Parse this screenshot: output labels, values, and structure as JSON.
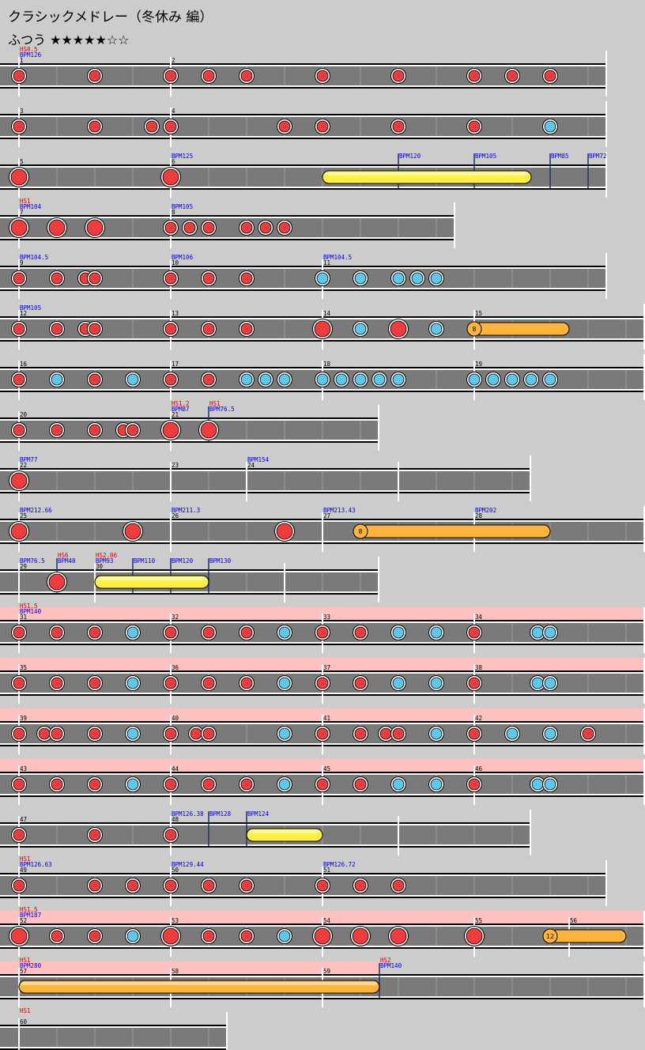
{
  "song": {
    "title": "クラシックメドレー（冬休み 編）",
    "difficulty": "ふつう",
    "stars": "★★★★★☆☆"
  },
  "colors": {
    "don": "#f03c3c",
    "ka": "#5ac8f0",
    "drumroll": "#fff044",
    "drumroll_big": "#ffb43c",
    "gogo": "#ffc0c0",
    "lane": "#7a7a7a",
    "bpm_text": "#0000c0",
    "hs_text": "#d00000"
  },
  "rows": [
    {
      "measures": [
        {
          "num": "1",
          "bpm": "BPM126",
          "hs": "HS0.5"
        },
        {
          "num": "2"
        }
      ],
      "width": 4,
      "notes": [
        {
          "t": "d",
          "x": 0
        },
        {
          "t": "d",
          "x": 2
        },
        {
          "t": "d",
          "x": 4
        },
        {
          "t": "d",
          "x": 5
        },
        {
          "t": "d",
          "x": 6
        },
        {
          "t": "d",
          "x": 8
        },
        {
          "t": "d",
          "x": 10
        },
        {
          "t": "d",
          "x": 12
        },
        {
          "t": "d",
          "x": 13
        },
        {
          "t": "d",
          "x": 14
        }
      ]
    },
    {
      "measures": [
        {
          "num": "3"
        },
        {
          "num": "4"
        }
      ],
      "width": 4,
      "notes": [
        {
          "t": "d",
          "x": 0
        },
        {
          "t": "d",
          "x": 2
        },
        {
          "t": "d",
          "x": 3.5
        },
        {
          "t": "d",
          "x": 4
        },
        {
          "t": "d",
          "x": 7
        },
        {
          "t": "d",
          "x": 8
        },
        {
          "t": "d",
          "x": 10
        },
        {
          "t": "d",
          "x": 12
        },
        {
          "t": "k",
          "x": 14
        }
      ]
    },
    {
      "measures": [
        {
          "num": "5"
        },
        {
          "num": "6",
          "bpm": "BPM125"
        }
      ],
      "width": 4,
      "bpms": [
        {
          "x": 10,
          "label": "BPM120"
        },
        {
          "x": 12,
          "label": "BPM105"
        },
        {
          "x": 14,
          "label": "BPM85"
        },
        {
          "x": 15,
          "label": "BPM72"
        }
      ],
      "notes": [
        {
          "t": "D",
          "x": 0
        },
        {
          "t": "D",
          "x": 4
        },
        {
          "t": "roll",
          "x": 8,
          "end": 13.5
        }
      ]
    },
    {
      "measures": [
        {
          "num": "7",
          "bpm": "BPM104",
          "hs": "HS1"
        },
        {
          "num": "8",
          "bpm": "BPM105"
        }
      ],
      "width": 3,
      "notes": [
        {
          "t": "D",
          "x": 0
        },
        {
          "t": "D",
          "x": 1
        },
        {
          "t": "D",
          "x": 2
        },
        {
          "t": "d",
          "x": 4
        },
        {
          "t": "d",
          "x": 4.5
        },
        {
          "t": "d",
          "x": 5
        },
        {
          "t": "d",
          "x": 6
        },
        {
          "t": "d",
          "x": 6.5
        },
        {
          "t": "d",
          "x": 7
        }
      ]
    },
    {
      "measures": [
        {
          "num": "9",
          "bpm": "BPM104.5"
        },
        {
          "num": "10",
          "bpm": "BPM106"
        },
        {
          "num": "11",
          "bpm": "BPM104.5"
        }
      ],
      "width": 4,
      "notes": [
        {
          "t": "d",
          "x": 0
        },
        {
          "t": "d",
          "x": 1
        },
        {
          "t": "d",
          "x": 1.75
        },
        {
          "t": "d",
          "x": 2
        },
        {
          "t": "d",
          "x": 4
        },
        {
          "t": "d",
          "x": 5
        },
        {
          "t": "d",
          "x": 6
        },
        {
          "t": "k",
          "x": 8
        },
        {
          "t": "k",
          "x": 9
        },
        {
          "t": "k",
          "x": 10
        },
        {
          "t": "k",
          "x": 10.5
        },
        {
          "t": "k",
          "x": 11
        }
      ]
    },
    {
      "measures": [
        {
          "num": "12",
          "bpm": "BPM105"
        },
        {
          "num": "13"
        },
        {
          "num": "14"
        },
        {
          "num": "15"
        }
      ],
      "width": 5,
      "notes": [
        {
          "t": "d",
          "x": 0
        },
        {
          "t": "d",
          "x": 1
        },
        {
          "t": "d",
          "x": 1.75
        },
        {
          "t": "d",
          "x": 2
        },
        {
          "t": "d",
          "x": 4
        },
        {
          "t": "d",
          "x": 5
        },
        {
          "t": "d",
          "x": 6
        },
        {
          "t": "D",
          "x": 8
        },
        {
          "t": "k",
          "x": 9
        },
        {
          "t": "D",
          "x": 10
        },
        {
          "t": "k",
          "x": 11
        },
        {
          "t": "balloon",
          "x": 12,
          "end": 14.5,
          "count": "8"
        }
      ]
    },
    {
      "measures": [
        {
          "num": "16"
        },
        {
          "num": "17"
        },
        {
          "num": "18"
        },
        {
          "num": "19"
        }
      ],
      "width": 5,
      "notes": [
        {
          "t": "d",
          "x": 0
        },
        {
          "t": "k",
          "x": 1
        },
        {
          "t": "d",
          "x": 2
        },
        {
          "t": "k",
          "x": 3
        },
        {
          "t": "d",
          "x": 4
        },
        {
          "t": "d",
          "x": 5
        },
        {
          "t": "k",
          "x": 6
        },
        {
          "t": "k",
          "x": 6.5
        },
        {
          "t": "k",
          "x": 7
        },
        {
          "t": "k",
          "x": 8
        },
        {
          "t": "k",
          "x": 8.5
        },
        {
          "t": "k",
          "x": 9
        },
        {
          "t": "k",
          "x": 9.5
        },
        {
          "t": "k",
          "x": 10
        },
        {
          "t": "k",
          "x": 12
        },
        {
          "t": "k",
          "x": 12.5
        },
        {
          "t": "k",
          "x": 13
        },
        {
          "t": "k",
          "x": 13.5
        },
        {
          "t": "k",
          "x": 14
        }
      ]
    },
    {
      "measures": [
        {
          "num": "20"
        },
        {
          "num": "21",
          "bpm": "BPM87",
          "hs": "HS1.2"
        }
      ],
      "width": 2.5,
      "bpms": [
        {
          "x": 5,
          "label": "BPM76.5",
          "hs": "HS1"
        }
      ],
      "notes": [
        {
          "t": "d",
          "x": 0
        },
        {
          "t": "d",
          "x": 1
        },
        {
          "t": "d",
          "x": 2
        },
        {
          "t": "d",
          "x": 2.75
        },
        {
          "t": "d",
          "x": 3
        },
        {
          "t": "D",
          "x": 4
        },
        {
          "t": "D",
          "x": 5
        }
      ]
    },
    {
      "measures": [
        {
          "num": "22",
          "bpm": "BPM77"
        },
        {
          "num": "23"
        },
        {
          "num": "24",
          "bpm": "BPM154",
          "at": 6
        }
      ],
      "width": 3.5,
      "barlines": [
        0,
        4,
        6,
        10
      ],
      "notes": [
        {
          "t": "D",
          "x": 0
        }
      ]
    },
    {
      "measures": [
        {
          "num": "25",
          "bpm": "BPM212.66"
        },
        {
          "num": "26",
          "bpm": "BPM211.3"
        },
        {
          "num": "27",
          "bpm": "BPM213.43"
        },
        {
          "num": "28",
          "bpm": "BPM202"
        }
      ],
      "width": 5,
      "notes": [
        {
          "t": "D",
          "x": 0
        },
        {
          "t": "D",
          "x": 3
        },
        {
          "t": "D",
          "x": 7
        },
        {
          "t": "balloon",
          "x": 9,
          "end": 14,
          "count": "8"
        }
      ]
    },
    {
      "measures": [
        {
          "num": "29",
          "bpm": "BPM76.5"
        },
        {
          "num": "30",
          "bpm": "BPM93",
          "hs": "HS2.06",
          "at": 2
        }
      ],
      "width": 2.5,
      "bpms": [
        {
          "x": 1,
          "label": "BPM40",
          "hs": "HS6"
        },
        {
          "x": 3,
          "label": "BPM110"
        },
        {
          "x": 4,
          "label": "BPM120"
        },
        {
          "x": 5,
          "label": "BPM130"
        }
      ],
      "barlines": [
        0,
        2,
        7
      ],
      "notes": [
        {
          "t": "D",
          "x": 1
        },
        {
          "t": "roll",
          "x": 2,
          "end": 5
        }
      ]
    },
    {
      "measures": [
        {
          "num": "31",
          "bpm": "BPM140",
          "hs": "HS1.5"
        },
        {
          "num": "32"
        },
        {
          "num": "33"
        },
        {
          "num": "34"
        }
      ],
      "width": 5,
      "gogo": true,
      "notes": [
        {
          "t": "d",
          "x": 0
        },
        {
          "t": "d",
          "x": 1
        },
        {
          "t": "d",
          "x": 2
        },
        {
          "t": "k",
          "x": 3
        },
        {
          "t": "d",
          "x": 4
        },
        {
          "t": "d",
          "x": 5
        },
        {
          "t": "d",
          "x": 6
        },
        {
          "t": "k",
          "x": 7
        },
        {
          "t": "d",
          "x": 8
        },
        {
          "t": "d",
          "x": 9
        },
        {
          "t": "k",
          "x": 10
        },
        {
          "t": "k",
          "x": 11
        },
        {
          "t": "d",
          "x": 12
        },
        {
          "t": "k",
          "x": 13.67
        },
        {
          "t": "k",
          "x": 14
        }
      ]
    },
    {
      "measures": [
        {
          "num": "35"
        },
        {
          "num": "36"
        },
        {
          "num": "37"
        },
        {
          "num": "38"
        }
      ],
      "width": 5,
      "gogo": true,
      "notes": [
        {
          "t": "d",
          "x": 0
        },
        {
          "t": "d",
          "x": 1
        },
        {
          "t": "d",
          "x": 2
        },
        {
          "t": "k",
          "x": 3
        },
        {
          "t": "d",
          "x": 4
        },
        {
          "t": "d",
          "x": 5
        },
        {
          "t": "d",
          "x": 6
        },
        {
          "t": "k",
          "x": 7
        },
        {
          "t": "d",
          "x": 8
        },
        {
          "t": "d",
          "x": 9
        },
        {
          "t": "k",
          "x": 10
        },
        {
          "t": "k",
          "x": 11
        },
        {
          "t": "d",
          "x": 12
        },
        {
          "t": "k",
          "x": 13.67
        },
        {
          "t": "k",
          "x": 14
        }
      ]
    },
    {
      "measures": [
        {
          "num": "39"
        },
        {
          "num": "40"
        },
        {
          "num": "41"
        },
        {
          "num": "42"
        }
      ],
      "width": 5,
      "gogo": true,
      "notes": [
        {
          "t": "d",
          "x": 0
        },
        {
          "t": "d",
          "x": 0.67
        },
        {
          "t": "d",
          "x": 1
        },
        {
          "t": "d",
          "x": 2
        },
        {
          "t": "k",
          "x": 3
        },
        {
          "t": "d",
          "x": 4
        },
        {
          "t": "d",
          "x": 4.67
        },
        {
          "t": "d",
          "x": 5
        },
        {
          "t": "k",
          "x": 7
        },
        {
          "t": "d",
          "x": 8
        },
        {
          "t": "d",
          "x": 9
        },
        {
          "t": "d",
          "x": 9.67
        },
        {
          "t": "d",
          "x": 10
        },
        {
          "t": "k",
          "x": 11
        },
        {
          "t": "d",
          "x": 12
        },
        {
          "t": "k",
          "x": 13
        },
        {
          "t": "k",
          "x": 14
        },
        {
          "t": "d",
          "x": 15
        }
      ]
    },
    {
      "measures": [
        {
          "num": "43"
        },
        {
          "num": "44"
        },
        {
          "num": "45"
        },
        {
          "num": "46"
        }
      ],
      "width": 5,
      "gogo": true,
      "notes": [
        {
          "t": "d",
          "x": 0
        },
        {
          "t": "d",
          "x": 1
        },
        {
          "t": "d",
          "x": 2
        },
        {
          "t": "k",
          "x": 3
        },
        {
          "t": "d",
          "x": 4
        },
        {
          "t": "d",
          "x": 5
        },
        {
          "t": "d",
          "x": 6
        },
        {
          "t": "k",
          "x": 7
        },
        {
          "t": "d",
          "x": 8
        },
        {
          "t": "d",
          "x": 9
        },
        {
          "t": "k",
          "x": 10
        },
        {
          "t": "k",
          "x": 11
        },
        {
          "t": "d",
          "x": 12
        },
        {
          "t": "k",
          "x": 13.67
        },
        {
          "t": "k",
          "x": 14
        }
      ]
    },
    {
      "measures": [
        {
          "num": "47"
        },
        {
          "num": "48",
          "bpm": "BPM126.38"
        }
      ],
      "width": 3.5,
      "bpms": [
        {
          "x": 5,
          "label": "BPM128"
        },
        {
          "x": 6,
          "label": "BPM124"
        }
      ],
      "barlines": [
        0,
        4,
        10
      ],
      "notes": [
        {
          "t": "d",
          "x": 0
        },
        {
          "t": "d",
          "x": 2
        },
        {
          "t": "d",
          "x": 4
        },
        {
          "t": "roll",
          "x": 6,
          "end": 8
        }
      ]
    },
    {
      "measures": [
        {
          "num": "49",
          "bpm": "BPM126.63",
          "hs": "HS1"
        },
        {
          "num": "50",
          "bpm": "BPM129.44"
        },
        {
          "num": "51",
          "bpm": "BPM126.72"
        }
      ],
      "width": 4,
      "notes": [
        {
          "t": "d",
          "x": 0
        },
        {
          "t": "d",
          "x": 2
        },
        {
          "t": "d",
          "x": 3
        },
        {
          "t": "d",
          "x": 4
        },
        {
          "t": "d",
          "x": 5
        },
        {
          "t": "d",
          "x": 6
        },
        {
          "t": "d",
          "x": 8
        },
        {
          "t": "d",
          "x": 9
        },
        {
          "t": "d",
          "x": 10
        }
      ]
    },
    {
      "measures": [
        {
          "num": "52",
          "bpm": "BPM187",
          "hs": "HS1.5"
        },
        {
          "num": "53"
        },
        {
          "num": "54"
        },
        {
          "num": "55"
        },
        {
          "num": "56",
          "at": 14.5
        }
      ],
      "width": 5,
      "gogo": true,
      "notes": [
        {
          "t": "D",
          "x": 0
        },
        {
          "t": "d",
          "x": 1
        },
        {
          "t": "d",
          "x": 2
        },
        {
          "t": "k",
          "x": 3
        },
        {
          "t": "D",
          "x": 4
        },
        {
          "t": "d",
          "x": 5
        },
        {
          "t": "d",
          "x": 6
        },
        {
          "t": "k",
          "x": 7
        },
        {
          "t": "D",
          "x": 8
        },
        {
          "t": "D",
          "x": 9
        },
        {
          "t": "D",
          "x": 10
        },
        {
          "t": "D",
          "x": 12
        },
        {
          "t": "balloon",
          "x": 14,
          "end": 16,
          "count": "12"
        }
      ]
    },
    {
      "measures": [
        {
          "num": "57",
          "bpm": "BPM280",
          "hs": "HS1"
        },
        {
          "num": "58"
        },
        {
          "num": "59"
        }
      ],
      "width": 4.5,
      "gogo_end": 9.5,
      "bpms": [
        {
          "x": 9.5,
          "label": "BPM140",
          "hs": "HS2"
        }
      ],
      "notes": [
        {
          "t": "roll_big",
          "x": 0,
          "end": 9.5
        }
      ]
    },
    {
      "measures": [
        {
          "num": "60",
          "hs": "HS1"
        }
      ],
      "width": 1.5,
      "notes": []
    }
  ]
}
